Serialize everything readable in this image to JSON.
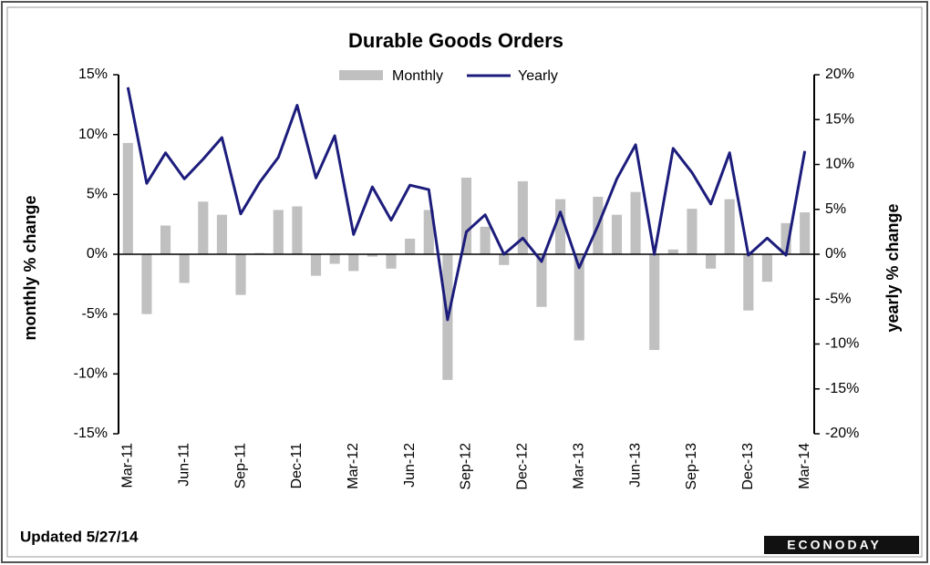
{
  "chart_data": {
    "type": "bar_line",
    "title": "Durable Goods  Orders",
    "categories": [
      "Mar-11",
      null,
      null,
      "Jun-11",
      null,
      null,
      "Sep-11",
      null,
      null,
      "Dec-11",
      null,
      null,
      "Mar-12",
      null,
      null,
      "Jun-12",
      null,
      null,
      "Sep-12",
      null,
      null,
      "Dec-12",
      null,
      null,
      "Mar-13",
      null,
      null,
      "Jun-13",
      null,
      null,
      "Sep-13",
      null,
      null,
      "Dec-13",
      null,
      null,
      "Mar-14"
    ],
    "series": [
      {
        "name": "Monthly",
        "type": "bar",
        "color": "#c0c0c0",
        "axis": "y",
        "values": [
          9.3,
          -5.0,
          2.4,
          -2.4,
          4.4,
          3.3,
          -3.4,
          0.1,
          3.7,
          4.0,
          -1.8,
          -0.8,
          -1.4,
          -0.2,
          -1.2,
          1.3,
          3.7,
          -10.5,
          6.4,
          2.3,
          -0.9,
          6.1,
          -4.4,
          4.6,
          -7.2,
          4.8,
          3.3,
          5.2,
          -8.0,
          0.4,
          3.8,
          -1.2,
          4.6,
          -4.7,
          -2.3,
          2.6,
          3.5
        ]
      },
      {
        "name": "Yearly",
        "type": "line",
        "color": "#1c1c7c",
        "axis": "y2",
        "values": [
          18.6,
          7.9,
          11.3,
          8.4,
          10.6,
          13.0,
          4.5,
          8.0,
          10.8,
          16.6,
          8.5,
          13.2,
          2.2,
          7.5,
          3.8,
          7.7,
          7.2,
          -7.3,
          2.5,
          4.4,
          0.0,
          1.8,
          -0.8,
          4.7,
          -1.5,
          3.2,
          8.4,
          12.2,
          0.0,
          11.8,
          9.1,
          5.6,
          11.3,
          -0.1,
          1.8,
          -0.1,
          11.5
        ]
      }
    ],
    "ylabel": "monthly % change",
    "y2label": "yearly % change",
    "ylim": [
      -15,
      15
    ],
    "yticks": [
      {
        "value": -15,
        "label": "-15%"
      },
      {
        "value": -10,
        "label": "-10%"
      },
      {
        "value": -5,
        "label": "-5%"
      },
      {
        "value": 0,
        "label": "0%"
      },
      {
        "value": 5,
        "label": "5%"
      },
      {
        "value": 10,
        "label": "10%"
      },
      {
        "value": 15,
        "label": "15%"
      }
    ],
    "y2lim": [
      -20,
      20
    ],
    "y2ticks": [
      {
        "value": -20,
        "label": "-20%"
      },
      {
        "value": -15,
        "label": "-15%"
      },
      {
        "value": -10,
        "label": "-10%"
      },
      {
        "value": -5,
        "label": "-5%"
      },
      {
        "value": 0,
        "label": "0%"
      },
      {
        "value": 5,
        "label": "5%"
      },
      {
        "value": 10,
        "label": "10%"
      },
      {
        "value": 15,
        "label": "15%"
      },
      {
        "value": 20,
        "label": "20%"
      }
    ],
    "footnote": "Updated 5/27/14",
    "logo": "ECONODAY"
  }
}
